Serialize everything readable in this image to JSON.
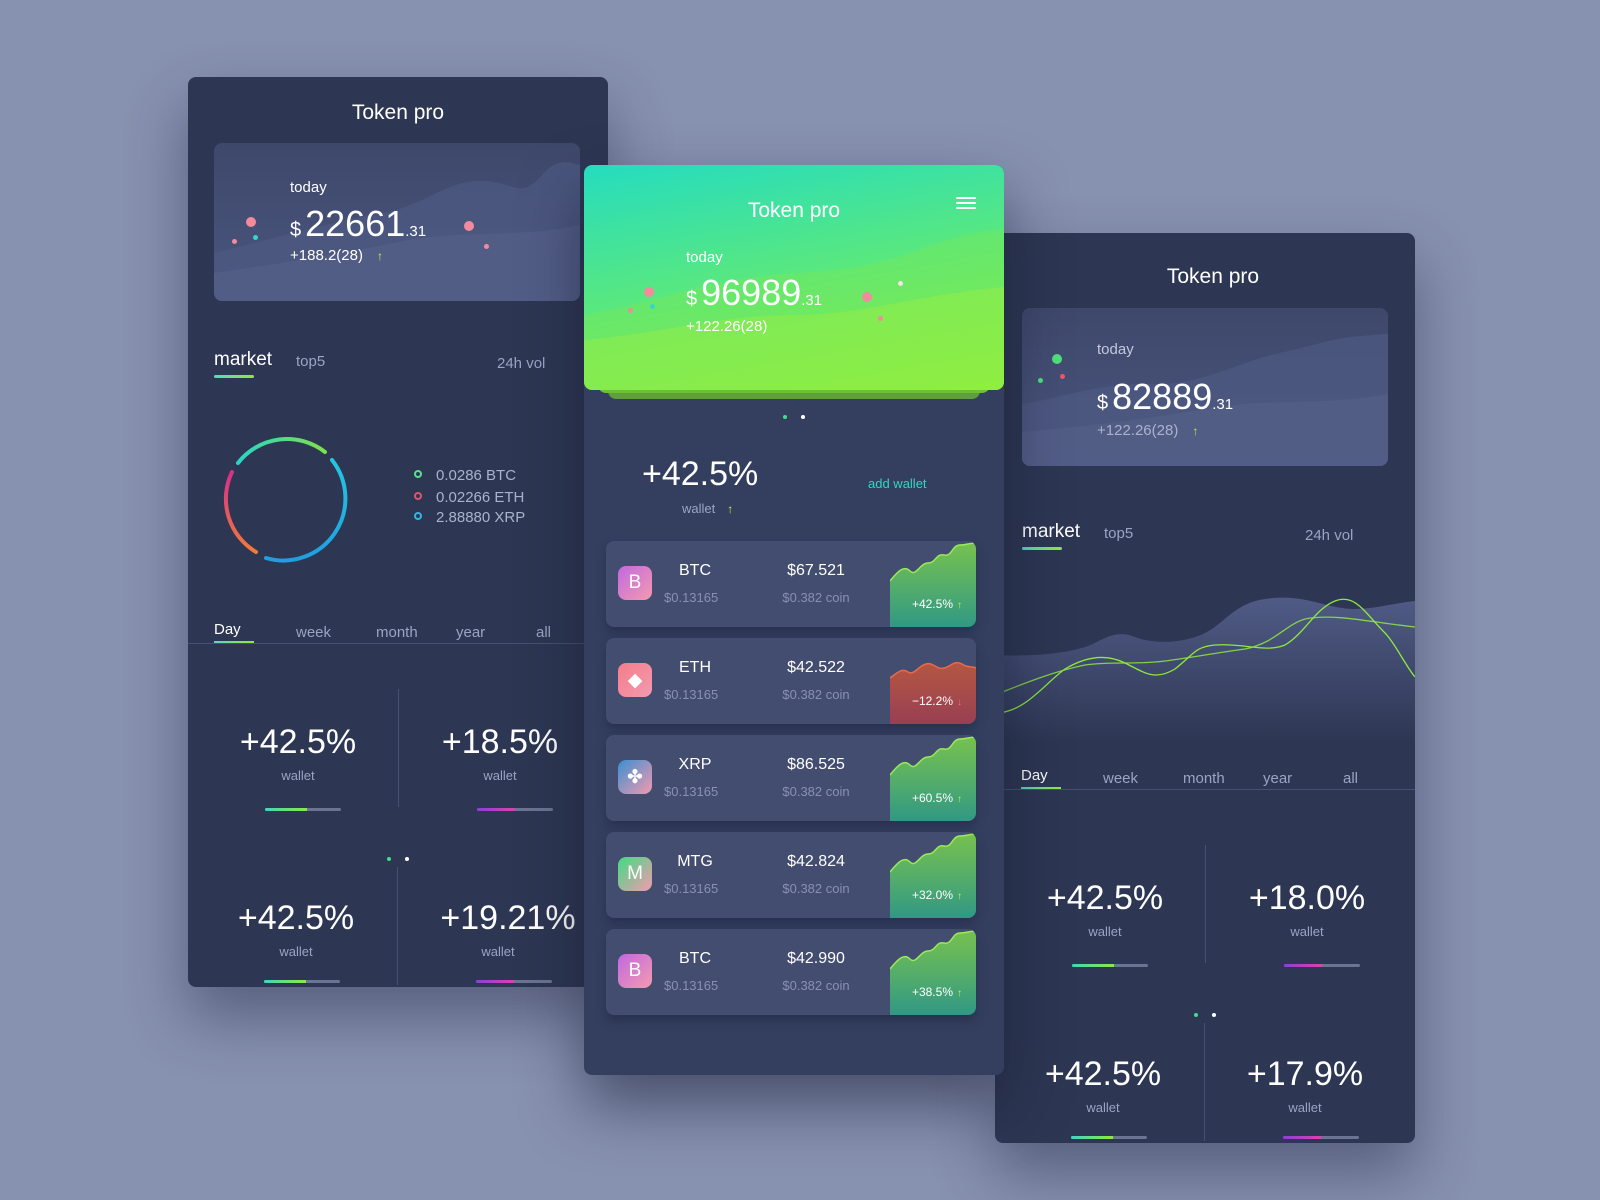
{
  "app_title": "Token pro",
  "colors": {
    "background": "#8791b0",
    "panel": "#2d3652",
    "accent_green": "#8ee93e",
    "accent_teal": "#25dcc0",
    "negative": "#e05b6a"
  },
  "left": {
    "today_label": "today",
    "currency": "$",
    "amount": "22661",
    "cents": ".31",
    "change": "+188.2(28)",
    "tabs": {
      "market": "market",
      "top5": "top5",
      "vol": "24h vol"
    },
    "legend": [
      {
        "text": "0.0286 BTC",
        "color": "#5be08c"
      },
      {
        "text": "0.02266 ETH",
        "color": "#e0566b"
      },
      {
        "text": "2.88880 XRP",
        "color": "#2fb8e6"
      }
    ],
    "periods": [
      "Day",
      "week",
      "month",
      "year",
      "all"
    ],
    "stats": [
      {
        "value": "+42.5%",
        "label": "wallet"
      },
      {
        "value": "+18.5%",
        "label": "wallet"
      },
      {
        "value": "+42.5%",
        "label": "wallet"
      },
      {
        "value": "+19.21%",
        "label": "wallet"
      }
    ]
  },
  "center": {
    "today_label": "today",
    "currency": "$",
    "amount": "96989",
    "cents": ".31",
    "change": "+122.26(28)",
    "menu_icon": "hamburger-menu-icon",
    "wallet_pct": "+42.5%",
    "wallet_label": "wallet",
    "add_wallet": "add wallet",
    "coins": [
      {
        "icon": "B",
        "name": "BTC",
        "sub": "$0.13165",
        "price": "$67.521",
        "price_sub": "$0.382 coin",
        "pct": "+42.5%",
        "dir": "up",
        "icon_color": "#c168e0"
      },
      {
        "icon": "◆",
        "name": "ETH",
        "sub": "$0.13165",
        "price": "$42.522",
        "price_sub": "$0.382 coin",
        "pct": "−12.2%",
        "dir": "down",
        "icon_color": "#f47d8a"
      },
      {
        "icon": "✤",
        "name": "XRP",
        "sub": "$0.13165",
        "price": "$86.525",
        "price_sub": "$0.382 coin",
        "pct": "+60.5%",
        "dir": "up",
        "icon_color": "#3b8fd1"
      },
      {
        "icon": "M",
        "name": "MTG",
        "sub": "$0.13165",
        "price": "$42.824",
        "price_sub": "$0.382 coin",
        "pct": "+32.0%",
        "dir": "up",
        "icon_color": "#3fdc83"
      },
      {
        "icon": "B",
        "name": "BTC",
        "sub": "$0.13165",
        "price": "$42.990",
        "price_sub": "$0.382 coin",
        "pct": "+38.5%",
        "dir": "up",
        "icon_color": "#c168e0"
      }
    ]
  },
  "right": {
    "today_label": "today",
    "currency": "$",
    "amount": "82889",
    "cents": ".31",
    "change": "+122.26(28)",
    "tabs": {
      "market": "market",
      "top5": "top5",
      "vol": "24h vol"
    },
    "periods": [
      "Day",
      "week",
      "month",
      "year",
      "all"
    ],
    "stats": [
      {
        "value": "+42.5%",
        "label": "wallet"
      },
      {
        "value": "+18.0%",
        "label": "wallet"
      },
      {
        "value": "+42.5%",
        "label": "wallet"
      },
      {
        "value": "+17.9%",
        "label": "wallet"
      }
    ]
  }
}
